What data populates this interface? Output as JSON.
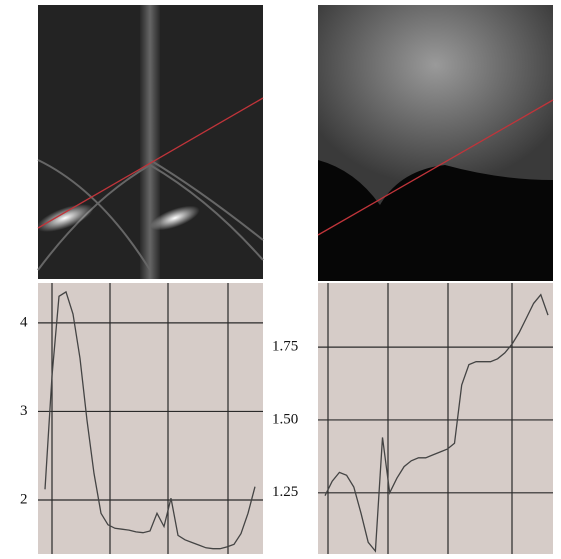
{
  "chart_data": [
    {
      "type": "line",
      "categories": [
        null,
        null,
        null,
        null,
        null,
        null,
        null,
        null,
        null,
        null,
        null,
        null,
        null,
        null,
        null,
        null,
        null,
        null,
        null,
        null,
        null,
        null,
        null,
        null,
        null,
        null,
        null,
        null,
        null,
        null,
        null
      ],
      "series": [
        {
          "color": "#444444",
          "values": [
            2.12,
            3.4,
            4.3,
            4.35,
            4.1,
            3.6,
            2.9,
            2.3,
            1.85,
            1.72,
            1.68,
            1.67,
            1.66,
            1.64,
            1.63,
            1.65,
            1.85,
            1.7,
            2.02,
            1.6,
            1.55,
            1.52,
            1.49,
            1.46,
            1.45,
            1.45,
            1.47,
            1.5,
            1.62,
            1.85,
            2.15
          ]
        }
      ],
      "ylim": [
        1.39,
        4.45
      ],
      "yticks": [
        2,
        3,
        4
      ],
      "grid": true
    },
    {
      "type": "line",
      "categories": [
        null,
        null,
        null,
        null,
        null,
        null,
        null,
        null,
        null,
        null,
        null,
        null,
        null,
        null,
        null,
        null,
        null,
        null,
        null,
        null,
        null,
        null,
        null,
        null,
        null,
        null,
        null,
        null,
        null,
        null,
        null,
        null
      ],
      "series": [
        {
          "color": "#444444",
          "values": [
            1.24,
            1.29,
            1.32,
            1.31,
            1.27,
            1.18,
            1.08,
            1.05,
            1.44,
            1.25,
            1.3,
            1.34,
            1.36,
            1.37,
            1.37,
            1.38,
            1.39,
            1.4,
            1.42,
            1.62,
            1.69,
            1.7,
            1.7,
            1.7,
            1.71,
            1.73,
            1.76,
            1.8,
            1.85,
            1.9,
            1.93,
            1.86
          ]
        }
      ],
      "ylim": [
        1.04,
        1.97
      ],
      "yticks": [
        {
          "value": 1.25,
          "label": "1.25"
        },
        {
          "value": 1.5,
          "label": "1.50"
        },
        {
          "value": 1.75,
          "label": "1.75"
        }
      ],
      "grid": true
    }
  ]
}
